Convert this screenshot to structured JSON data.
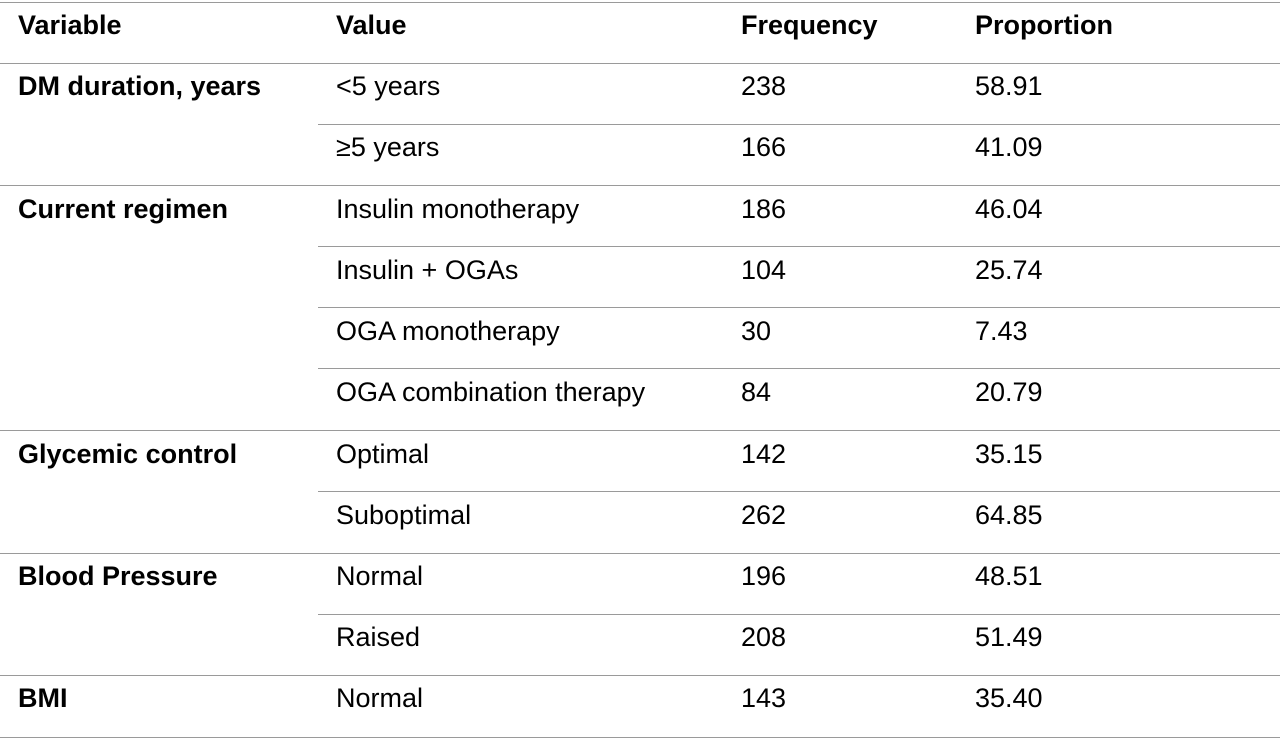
{
  "header": {
    "variable": "Variable",
    "value": "Value",
    "frequency": "Frequency",
    "proportion": "Proportion"
  },
  "rows": [
    {
      "variable": "DM duration, years",
      "value": "<5 years",
      "frequency": "238",
      "proportion": "58.91"
    },
    {
      "variable": "",
      "value": "≥5 years",
      "frequency": "166",
      "proportion": "41.09"
    },
    {
      "variable": "Current regimen",
      "value": "Insulin monotherapy",
      "frequency": "186",
      "proportion": "46.04"
    },
    {
      "variable": "",
      "value": "Insulin + OGAs",
      "frequency": "104",
      "proportion": "25.74"
    },
    {
      "variable": "",
      "value": "OGA monotherapy",
      "frequency": "30",
      "proportion": "7.43"
    },
    {
      "variable": "",
      "value": "OGA combination therapy",
      "frequency": "84",
      "proportion": "20.79"
    },
    {
      "variable": "Glycemic control",
      "value": "Optimal",
      "frequency": "142",
      "proportion": "35.15"
    },
    {
      "variable": "",
      "value": "Suboptimal",
      "frequency": "262",
      "proportion": "64.85"
    },
    {
      "variable": "Blood Pressure",
      "value": "Normal",
      "frequency": "196",
      "proportion": "48.51"
    },
    {
      "variable": "",
      "value": "Raised",
      "frequency": "208",
      "proportion": "51.49"
    },
    {
      "variable": "BMI",
      "value": "Normal",
      "frequency": "143",
      "proportion": "35.40"
    }
  ]
}
